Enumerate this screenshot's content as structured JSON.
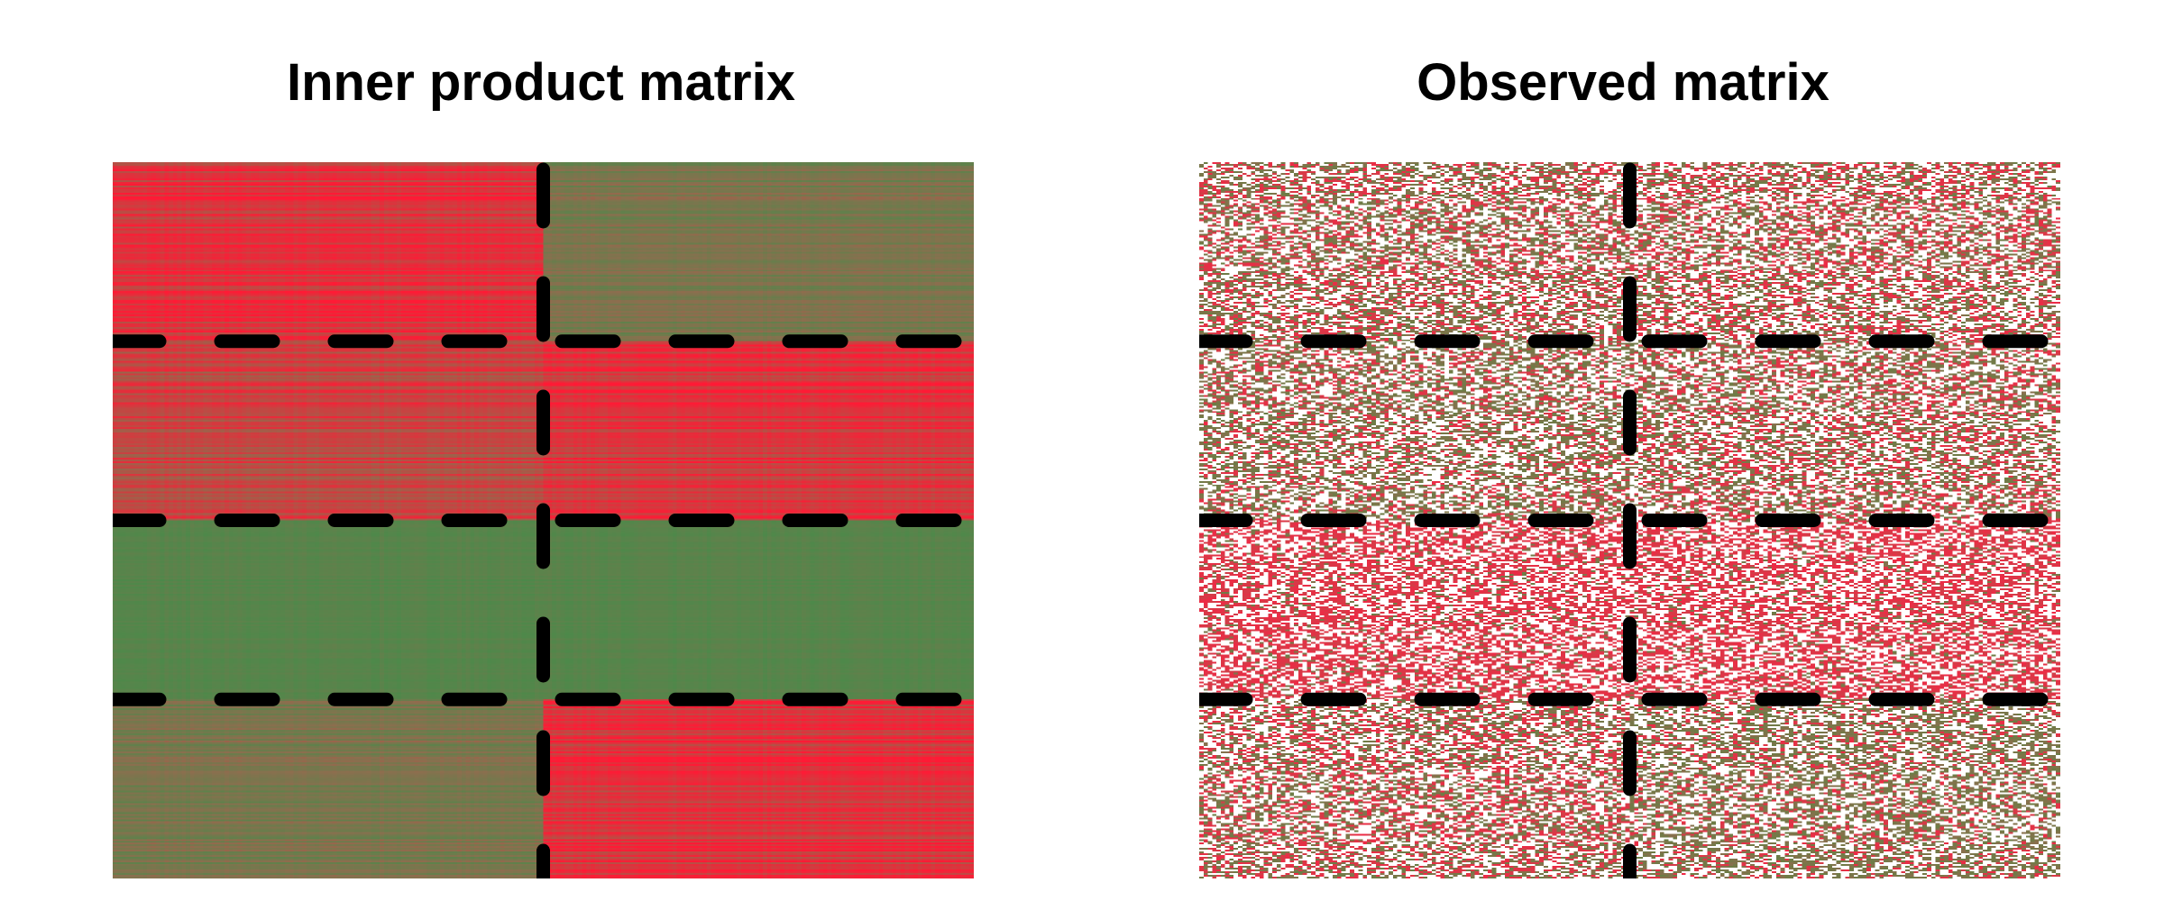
{
  "chart_data": [
    {
      "type": "heatmap",
      "title": "Inner product matrix",
      "xlabel": "",
      "ylabel": "",
      "legend": "none",
      "grid": false,
      "n_rows": 400,
      "n_cols": 200,
      "row_blocks": [
        100,
        100,
        100,
        100
      ],
      "col_blocks": [
        100,
        100
      ],
      "block_means": [
        [
          0.85,
          0.35
        ],
        [
          0.75,
          0.85
        ],
        [
          0.1,
          0.1
        ],
        [
          0.35,
          0.85
        ]
      ],
      "value_range": [
        0,
        1
      ],
      "colors": {
        "low": "#4a8a4a",
        "mid": "#8c6e4e",
        "high": "#ff1a35",
        "missing": "#ffffff",
        "divider": "#000000"
      },
      "dividers": "dashed lines at block boundaries"
    },
    {
      "type": "heatmap",
      "title": "Observed matrix",
      "xlabel": "",
      "ylabel": "",
      "legend": "none",
      "grid": false,
      "n_rows": 400,
      "n_cols": 200,
      "row_blocks": [
        100,
        100,
        100,
        100
      ],
      "col_blocks": [
        100,
        100
      ],
      "observed_fraction": 0.55,
      "block_means": [
        [
          0.45,
          0.5
        ],
        [
          0.35,
          0.45
        ],
        [
          0.85,
          0.85
        ],
        [
          0.5,
          0.3
        ]
      ],
      "value_range": [
        0,
        1
      ],
      "colors": {
        "low": "#6b7d45",
        "mid": "#8c6e4e",
        "high": "#ee2a45",
        "missing": "#ffffff",
        "divider": "#000000"
      },
      "dividers": "dashed lines at block boundaries"
    }
  ]
}
